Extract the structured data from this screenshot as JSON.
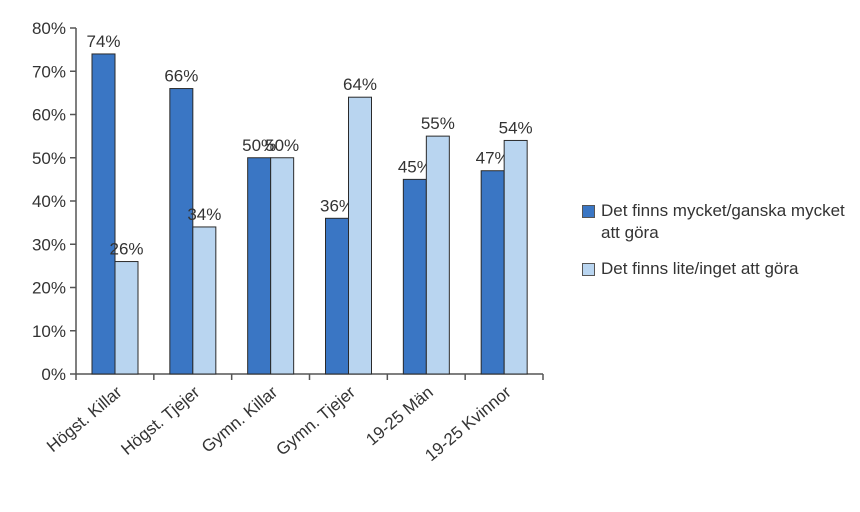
{
  "chart_data": {
    "type": "bar",
    "categories": [
      "Högst. Killar",
      "Högst. Tjejer",
      "Gymn. Killar",
      "Gymn. Tjejer",
      "19-25 Män",
      "19-25 Kvinnor"
    ],
    "series": [
      {
        "name": "Det finns mycket/ganska mycket att göra",
        "values": [
          74,
          66,
          50,
          36,
          45,
          47
        ],
        "labels": [
          "74%",
          "66%",
          "50%",
          "36%",
          "45%",
          "47%"
        ],
        "color": "#3a76c4"
      },
      {
        "name": "Det finns lite/inget att göra",
        "values": [
          26,
          34,
          50,
          64,
          55,
          54
        ],
        "labels": [
          "26%",
          "34%",
          "50%",
          "64%",
          "55%",
          "54%"
        ],
        "color": "#b9d5f0"
      }
    ],
    "ylim": [
      0,
      80
    ],
    "yticks": [
      0,
      10,
      20,
      30,
      40,
      50,
      60,
      70,
      80
    ],
    "ytick_labels": [
      "0%",
      "10%",
      "20%",
      "30%",
      "40%",
      "50%",
      "60%",
      "70%",
      "80%"
    ],
    "title": "",
    "xlabel": "",
    "ylabel": "",
    "grid": false,
    "legend_position": "right"
  },
  "legend": [
    {
      "label": "Det finns mycket/ganska mycket att göra"
    },
    {
      "label": "Det finns lite/inget att göra"
    }
  ]
}
